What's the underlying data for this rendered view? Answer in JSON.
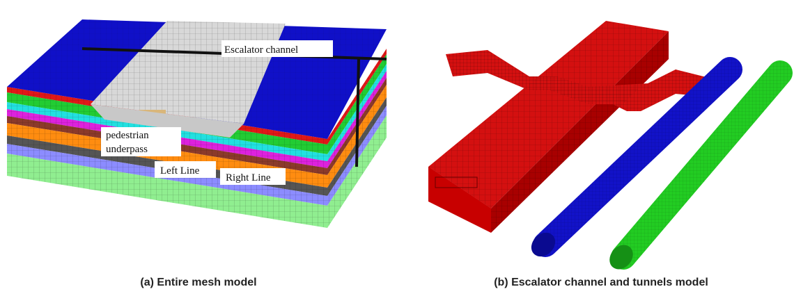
{
  "panel_a": {
    "caption": "(a) Entire mesh model",
    "labels": [
      "Escalator channel",
      "pedestrian",
      "underpass",
      "Left Line",
      "Right Line"
    ]
  },
  "panel_b": {
    "caption": "(b) Escalator channel and tunnels model"
  }
}
